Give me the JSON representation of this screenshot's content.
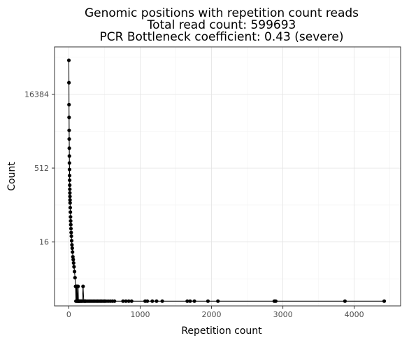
{
  "chart_data": {
    "type": "line",
    "title_lines": [
      "Genomic positions with repetition count reads",
      "Total read count: 599693",
      "PCR Bottleneck coefficient: 0.43 (severe)"
    ],
    "xlabel": "Repetition count",
    "ylabel": "Count",
    "xlim": [
      -200,
      4650
    ],
    "y_scale": "log2",
    "ylim": [
      0.8,
      150000
    ],
    "x_ticks": [
      0,
      1000,
      2000,
      3000,
      4000
    ],
    "x_tick_labels": [
      "0",
      "1000",
      "2000",
      "3000",
      "4000"
    ],
    "y_ticks": [
      16,
      512,
      16384
    ],
    "y_tick_labels": [
      "16",
      "512",
      "16384"
    ],
    "grid": true,
    "markers": true,
    "series": [
      {
        "color": "#000000",
        "x": [
          1,
          2,
          3,
          4,
          5,
          6,
          7,
          8,
          9,
          10,
          11,
          12,
          13,
          14,
          15,
          16,
          17,
          18,
          20,
          22,
          24,
          26,
          28,
          30,
          33,
          36,
          40,
          44,
          48,
          52,
          57,
          62,
          67,
          73,
          80,
          87,
          95,
          100,
          105,
          110,
          115,
          120,
          125,
          130,
          135,
          140,
          145,
          150,
          160,
          170,
          180,
          190,
          200,
          210,
          220,
          230,
          240,
          260,
          280,
          300,
          320,
          340,
          360,
          380,
          400,
          420,
          440,
          460,
          480,
          500,
          520,
          550,
          580,
          610,
          640,
          760,
          800,
          840,
          880,
          1070,
          1100,
          1170,
          1230,
          1310,
          1660,
          1700,
          1760,
          1950,
          2090,
          2880,
          2900,
          3870,
          4420
        ],
        "y": [
          80000,
          28000,
          10000,
          5500,
          3000,
          2000,
          1300,
          900,
          650,
          480,
          360,
          290,
          230,
          190,
          160,
          135,
          115,
          100,
          80,
          65,
          52,
          43,
          36,
          30,
          25,
          21,
          17,
          14,
          12,
          10,
          8,
          7,
          6,
          5,
          4,
          3,
          2,
          1,
          2,
          1,
          2,
          1,
          1,
          2,
          1,
          1,
          1,
          1,
          1,
          1,
          1,
          1,
          2,
          1,
          1,
          1,
          1,
          1,
          1,
          1,
          1,
          1,
          1,
          1,
          1,
          1,
          1,
          1,
          1,
          1,
          1,
          1,
          1,
          1,
          1,
          1,
          1,
          1,
          1,
          1,
          1,
          1,
          1,
          1,
          1,
          1,
          1,
          1,
          1,
          1,
          1,
          1,
          1
        ]
      }
    ]
  }
}
